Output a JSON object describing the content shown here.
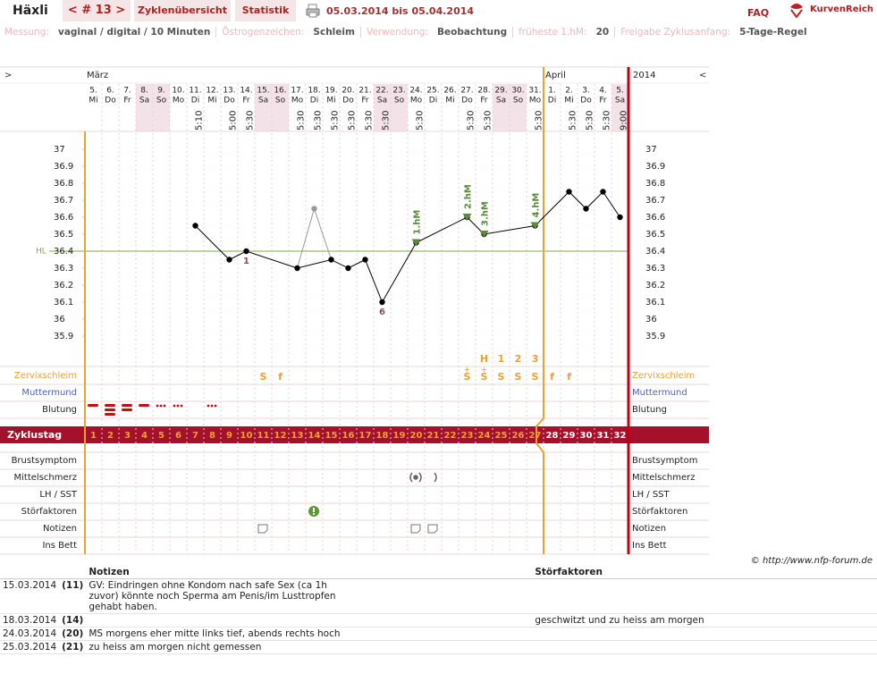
{
  "header": {
    "name": "Häxli",
    "cycle_nav": "< # 13 >",
    "tabs": [
      "Zyklenübersicht",
      "Statistik"
    ],
    "period": "05.03.2014 bis 05.04.2014",
    "faq": "FAQ",
    "logo": "KurvenReich"
  },
  "settings": [
    {
      "label": "Messung:",
      "value": "vaginal / digital / 10 Minuten"
    },
    {
      "label": "Östrogenzeichen:",
      "value": "Schleim"
    },
    {
      "label": "Verwendung:",
      "value": "Beobachtung"
    },
    {
      "label": "früheste 1.hM:",
      "value": "20"
    },
    {
      "label": "Freigabe Zyklusanfang:",
      "value": "5-Tage-Regel"
    }
  ],
  "chart_data": {
    "type": "line",
    "nav_prev": ">",
    "nav_next": "<",
    "year": "2014",
    "months": [
      "März",
      null,
      null,
      null,
      null,
      null,
      null,
      null,
      null,
      null,
      null,
      null,
      null,
      null,
      null,
      null,
      null,
      null,
      null,
      null,
      null,
      null,
      null,
      null,
      null,
      null,
      null,
      "April",
      null,
      null,
      null,
      null
    ],
    "categories": [
      "5.",
      "6.",
      "7.",
      "8.",
      "9.",
      "10.",
      "11.",
      "12.",
      "13.",
      "14.",
      "15.",
      "16.",
      "17.",
      "18.",
      "19.",
      "20.",
      "21.",
      "22.",
      "23.",
      "24.",
      "25.",
      "26.",
      "27.",
      "28.",
      "29.",
      "30.",
      "31.",
      "1.",
      "2.",
      "3.",
      "4.",
      "5."
    ],
    "weekdays": [
      "Mi",
      "Do",
      "Fr",
      "Sa",
      "So",
      "Mo",
      "Di",
      "Mi",
      "Do",
      "Fr",
      "Sa",
      "So",
      "Mo",
      "Di",
      "Mi",
      "Do",
      "Fr",
      "Sa",
      "So",
      "Mo",
      "Di",
      "Mi",
      "Do",
      "Fr",
      "Sa",
      "So",
      "Mo",
      "Di",
      "Mi",
      "Do",
      "Fr",
      "Sa"
    ],
    "times": [
      null,
      null,
      null,
      null,
      null,
      null,
      "5:10",
      null,
      "5:00",
      "5:30",
      null,
      null,
      "5:30",
      "5:30",
      "5:30",
      "5:30",
      "5:30",
      "5:30",
      null,
      "5:30",
      null,
      null,
      "5:30",
      "5:30",
      null,
      null,
      "5:30",
      null,
      "5:30",
      "5:30",
      "5:30",
      "9:00"
    ],
    "cycle_days": [
      1,
      2,
      3,
      4,
      5,
      6,
      7,
      8,
      9,
      10,
      11,
      12,
      13,
      14,
      15,
      16,
      17,
      18,
      19,
      20,
      21,
      22,
      23,
      24,
      25,
      26,
      27,
      28,
      29,
      30,
      31,
      32
    ],
    "ylim": [
      35.75,
      37.1
    ],
    "yticks": [
      37,
      36.9,
      36.8,
      36.7,
      36.6,
      36.5,
      36.4,
      36.3,
      36.2,
      36.1,
      36,
      35.9
    ],
    "coverline": {
      "label": "HL",
      "value": 36.4
    },
    "series": [
      {
        "color": "#000000",
        "x": [
          7,
          9,
          10,
          13,
          15,
          16,
          17,
          18,
          20,
          23,
          24,
          27,
          29,
          30,
          31,
          32
        ],
        "values": [
          36.55,
          36.35,
          36.4,
          36.3,
          36.35,
          36.3,
          36.35,
          36.1,
          36.45,
          36.6,
          36.5,
          36.55,
          36.75,
          36.65,
          36.75,
          36.6
        ]
      },
      {
        "color": "#999999",
        "x": [
          14
        ],
        "values": [
          36.65
        ]
      }
    ],
    "point_labels": [
      {
        "x": 10,
        "text": "1"
      },
      {
        "x": 18,
        "text": "6"
      }
    ],
    "peak_markers": [
      {
        "x": 20,
        "label": "1.hM"
      },
      {
        "x": 23,
        "label": "2.hM"
      },
      {
        "x": 24,
        "label": "3.hM"
      },
      {
        "x": 27,
        "label": "4.hM"
      }
    ],
    "mucus_peak": [
      null,
      null,
      null,
      null,
      null,
      null,
      null,
      null,
      null,
      null,
      null,
      null,
      null,
      null,
      null,
      null,
      null,
      null,
      null,
      null,
      null,
      null,
      null,
      "H",
      "1",
      "2",
      "3",
      null,
      null,
      null,
      null,
      null
    ],
    "mucus_plus": [
      null,
      null,
      null,
      null,
      null,
      null,
      null,
      null,
      null,
      null,
      null,
      null,
      null,
      null,
      null,
      null,
      null,
      null,
      null,
      null,
      null,
      null,
      "+",
      "+",
      null,
      null,
      null,
      null,
      null,
      null,
      null,
      null
    ],
    "mucus": [
      null,
      null,
      null,
      null,
      null,
      null,
      null,
      null,
      null,
      null,
      "S",
      "f",
      null,
      null,
      null,
      null,
      null,
      null,
      null,
      null,
      null,
      null,
      "S",
      "S",
      "S",
      "S",
      "S",
      "f",
      "f",
      null,
      null,
      null
    ],
    "row_labels": {
      "cervix": "Zervixschleim",
      "os": "Muttermund",
      "bleeding": "Blutung",
      "cycle_day": "Zyklustag",
      "breast": "Brustsymptom",
      "mittelschmerz": "Mittelschmerz",
      "lh": "LH / SST",
      "disturbances": "Störfaktoren",
      "notes": "Notizen",
      "bed": "Ins Bett"
    }
  },
  "credit": "© http://www.nfp-forum.de",
  "notes_table": {
    "headers": [
      "Notizen",
      "Störfaktoren"
    ],
    "rows": [
      [
        "15.03.2014",
        "(11)",
        "GV: Eindringen ohne Kondom nach safe Sex (ca 1h zuvor) könnte noch Sperma am Penis/im Lusttropfen gehabt haben.",
        null
      ],
      [
        "18.03.2014",
        "(14)",
        null,
        "geschwitzt und zu heiss am morgen"
      ],
      [
        "24.03.2014",
        "(20)",
        "MS morgens eher mitte links tief, abends rechts hoch",
        null
      ],
      [
        "25.03.2014",
        "(21)",
        "zu heiss am morgen nicht gemessen",
        null
      ]
    ]
  }
}
